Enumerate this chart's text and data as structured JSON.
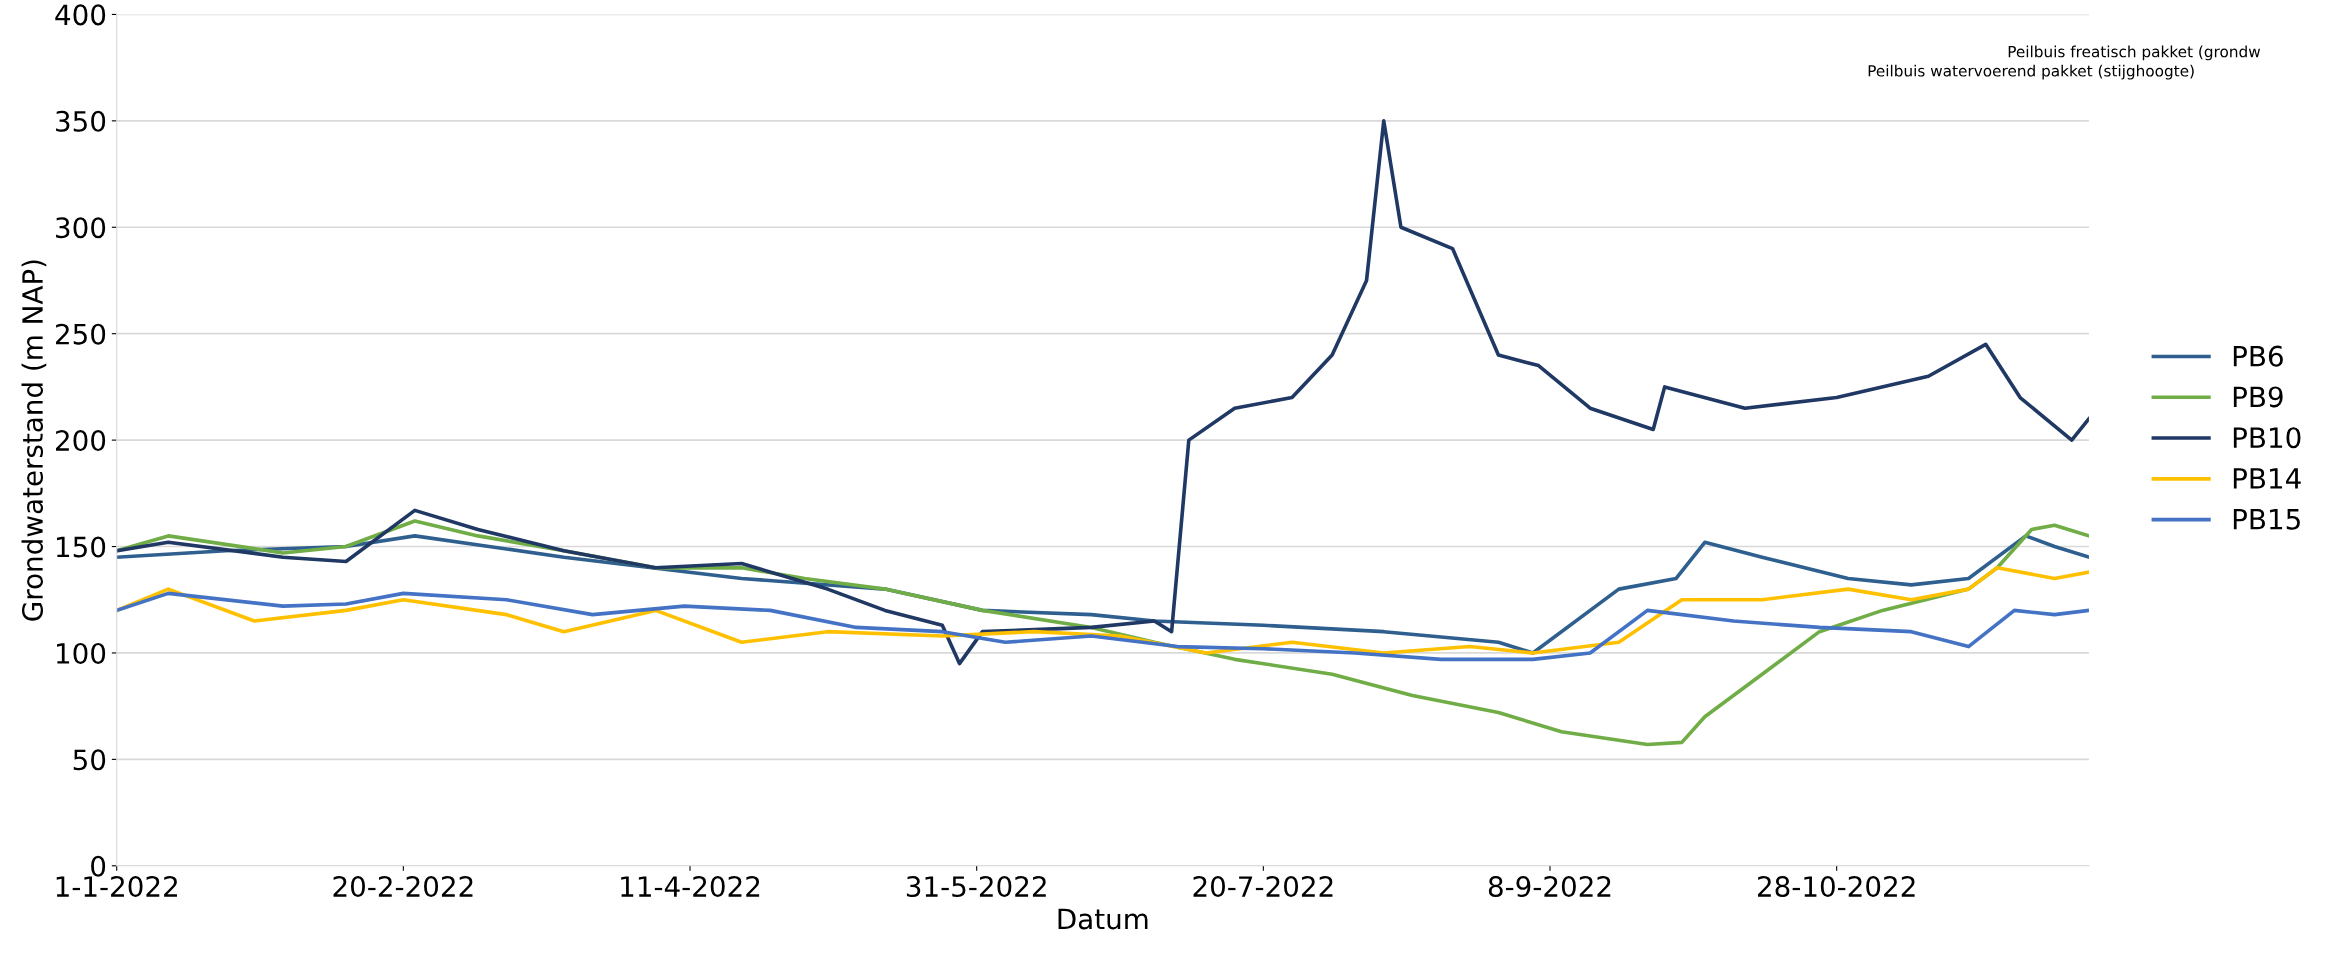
{
  "chart_data": {
    "type": "line",
    "xlabel": "Datum",
    "ylabel": "Grondwaterstand (m NAP)",
    "xlim": [
      "2022-01-01",
      "2022-12-11"
    ],
    "ylim": [
      0,
      400
    ],
    "yticks": [
      0,
      50,
      100,
      150,
      200,
      250,
      300,
      350,
      400
    ],
    "xticks": [
      {
        "value": "2022-01-01",
        "label": "1-1-2022"
      },
      {
        "value": "2022-02-20",
        "label": "20-2-2022"
      },
      {
        "value": "2022-04-11",
        "label": "11-4-2022"
      },
      {
        "value": "2022-05-31",
        "label": "31-5-2022"
      },
      {
        "value": "2022-07-20",
        "label": "20-7-2022"
      },
      {
        "value": "2022-09-08",
        "label": "8-9-2022"
      },
      {
        "value": "2022-10-28",
        "label": "28-10-2022"
      }
    ],
    "grid": "y",
    "legend": "right",
    "marker": "none",
    "line_style": "solid",
    "annotations": [
      "Peilbuis freatisch pakket (grondw",
      "Peilbuis watervoerend pakket (stijghoogte)"
    ],
    "series": [
      {
        "name": "PB6",
        "color": "#2e5f8f",
        "x": [
          "2022-01-01",
          "2022-01-20",
          "2022-02-10",
          "2022-02-22",
          "2022-03-20",
          "2022-04-20",
          "2022-05-15",
          "2022-06-01",
          "2022-06-20",
          "2022-07-01",
          "2022-07-20",
          "2022-08-10",
          "2022-08-30",
          "2022-09-05",
          "2022-09-20",
          "2022-09-30",
          "2022-10-05",
          "2022-10-15",
          "2022-10-30",
          "2022-11-10",
          "2022-11-20",
          "2022-11-30",
          "2022-12-05",
          "2022-12-11"
        ],
        "values": [
          145,
          148,
          150,
          155,
          145,
          135,
          130,
          120,
          118,
          115,
          113,
          110,
          105,
          100,
          130,
          135,
          152,
          145,
          135,
          132,
          135,
          155,
          150,
          145
        ]
      },
      {
        "name": "PB9",
        "color": "#70ad47",
        "x": [
          "2022-01-01",
          "2022-01-10",
          "2022-01-30",
          "2022-02-10",
          "2022-02-22",
          "2022-03-05",
          "2022-03-20",
          "2022-04-05",
          "2022-04-20",
          "2022-05-01",
          "2022-05-15",
          "2022-06-01",
          "2022-06-20",
          "2022-07-01",
          "2022-07-15",
          "2022-08-01",
          "2022-08-15",
          "2022-08-30",
          "2022-09-10",
          "2022-09-25",
          "2022-10-01",
          "2022-10-05",
          "2022-10-15",
          "2022-10-25",
          "2022-11-05",
          "2022-11-20",
          "2022-11-25",
          "2022-12-01",
          "2022-12-05",
          "2022-12-11"
        ],
        "values": [
          148,
          155,
          147,
          150,
          162,
          155,
          148,
          140,
          140,
          135,
          130,
          120,
          112,
          105,
          97,
          90,
          80,
          72,
          63,
          57,
          58,
          70,
          90,
          110,
          120,
          130,
          140,
          158,
          160,
          155
        ]
      },
      {
        "name": "PB10",
        "color": "#203864",
        "x": [
          "2022-01-01",
          "2022-01-10",
          "2022-01-30",
          "2022-02-10",
          "2022-02-22",
          "2022-03-05",
          "2022-03-20",
          "2022-04-05",
          "2022-04-20",
          "2022-05-05",
          "2022-05-15",
          "2022-05-25",
          "2022-05-28",
          "2022-06-01",
          "2022-06-20",
          "2022-07-01",
          "2022-07-04",
          "2022-07-07",
          "2022-07-15",
          "2022-07-25",
          "2022-08-01",
          "2022-08-07",
          "2022-08-10",
          "2022-08-13",
          "2022-08-22",
          "2022-08-30",
          "2022-09-06",
          "2022-09-15",
          "2022-09-26",
          "2022-09-28",
          "2022-10-12",
          "2022-10-28",
          "2022-11-13",
          "2022-11-23",
          "2022-11-29",
          "2022-12-08",
          "2022-12-11"
        ],
        "values": [
          148,
          152,
          145,
          143,
          167,
          158,
          148,
          140,
          142,
          130,
          120,
          113,
          95,
          110,
          112,
          115,
          110,
          200,
          215,
          220,
          240,
          275,
          350,
          300,
          290,
          240,
          235,
          215,
          205,
          225,
          215,
          220,
          230,
          245,
          220,
          200,
          210
        ]
      },
      {
        "name": "PB14",
        "color": "#ffc000",
        "x": [
          "2022-01-01",
          "2022-01-10",
          "2022-01-25",
          "2022-02-10",
          "2022-02-20",
          "2022-03-10",
          "2022-03-20",
          "2022-04-05",
          "2022-04-20",
          "2022-05-05",
          "2022-05-25",
          "2022-06-10",
          "2022-06-25",
          "2022-07-10",
          "2022-07-25",
          "2022-08-10",
          "2022-08-25",
          "2022-09-05",
          "2022-09-20",
          "2022-10-01",
          "2022-10-15",
          "2022-10-30",
          "2022-11-10",
          "2022-11-20",
          "2022-11-25",
          "2022-12-05",
          "2022-12-11"
        ],
        "values": [
          120,
          130,
          115,
          120,
          125,
          118,
          110,
          120,
          105,
          110,
          108,
          110,
          108,
          100,
          105,
          100,
          103,
          100,
          105,
          125,
          125,
          130,
          125,
          130,
          140,
          135,
          138
        ]
      },
      {
        "name": "PB15",
        "color": "#4472c4",
        "x": [
          "2022-01-01",
          "2022-01-10",
          "2022-01-30",
          "2022-02-10",
          "2022-02-20",
          "2022-03-10",
          "2022-03-25",
          "2022-04-10",
          "2022-04-25",
          "2022-05-10",
          "2022-05-25",
          "2022-06-05",
          "2022-06-20",
          "2022-07-05",
          "2022-07-20",
          "2022-08-05",
          "2022-08-20",
          "2022-09-05",
          "2022-09-15",
          "2022-09-25",
          "2022-10-10",
          "2022-10-25",
          "2022-11-10",
          "2022-11-20",
          "2022-11-28",
          "2022-12-05",
          "2022-12-11"
        ],
        "values": [
          120,
          128,
          122,
          123,
          128,
          125,
          118,
          122,
          120,
          112,
          110,
          105,
          108,
          103,
          102,
          100,
          97,
          97,
          100,
          120,
          115,
          112,
          110,
          103,
          120,
          118,
          120
        ]
      }
    ]
  }
}
